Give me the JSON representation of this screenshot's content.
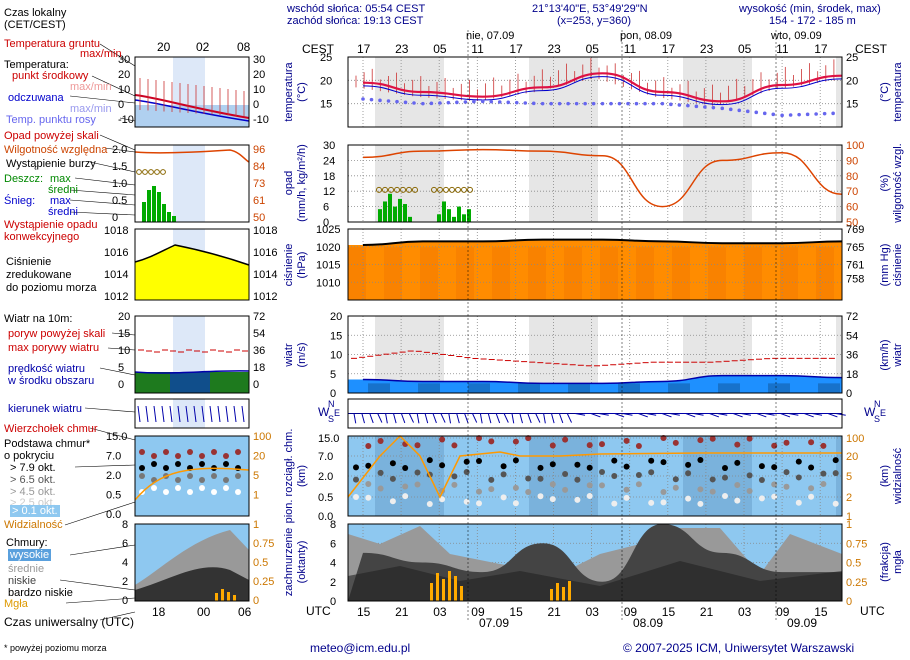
{
  "header": {
    "sunrise": "wschód słońca: 05:54 CEST",
    "sunset": "zachód słońca: 19:13 CEST",
    "coords": "21°13'40\"E, 53°49'29\"N",
    "grid": "(x=253,  y=360)",
    "height_title": "wysokość (min, środek, max)",
    "height_values": "154 - 172 - 185 m",
    "local_time_label": "Czas lokalny",
    "local_time_sub": "(CET/CEST)",
    "tz_left": "CEST",
    "tz_right": "CEST",
    "utc_left": "UTC",
    "utc_right": "UTC",
    "utc_caption": "Czas uniwersalny (UTC)"
  },
  "days": [
    {
      "label": "nie, 07.09",
      "utc_label": "07.09"
    },
    {
      "label": "pon, 08.09",
      "utc_label": "08.09"
    },
    {
      "label": "wto, 09.09",
      "utc_label": "09.09"
    }
  ],
  "local_ticks": [
    "17",
    "23",
    "05",
    "11",
    "17",
    "23",
    "05",
    "11",
    "17",
    "23",
    "05",
    "11",
    "17"
  ],
  "utc_ticks": [
    "15",
    "21",
    "03",
    "09",
    "15",
    "21",
    "03",
    "09",
    "15",
    "21",
    "03",
    "09",
    "15"
  ],
  "legend_ticks_top": [
    "20",
    "02",
    "08"
  ],
  "legend_ticks_bottom": [
    "18",
    "00",
    "06"
  ],
  "legend": {
    "temp_ground": "Temperatura gruntu",
    "temp_ground_sub": "max/min",
    "temp": "Temperatura:",
    "temp_mid": "punkt środkowy",
    "temp_minmax": "max/min",
    "temp_felt": "odczuwana",
    "temp_felt_minmax": "max/min",
    "dew": "Temp. punktu rosy",
    "precip_over": "Opad powyżej skali",
    "humidity": "Wilgotność względna",
    "storm": "Wystąpienie burzy",
    "rain": "Deszcz:",
    "rain_max": "max",
    "rain_mean": "średni",
    "snow": "Śnieg:",
    "snow_max": "max",
    "snow_mean": "średni",
    "convective": "Wystąpienie opadu",
    "convective2": "konwekcyjnego",
    "pressure1": "Ciśnienie",
    "pressure2": "zredukowane",
    "pressure3": "do poziomu morza",
    "wind10": "Wiatr na 10m:",
    "gust_over": "poryw powyżej skali",
    "gust_max": "max porywy wiatru",
    "wind_speed": "prędkość wiatru",
    "wind_speed2": "w środku obszaru",
    "wind_dir": "kierunek wiatru",
    "cloud_top": "Wierzchołek chmur",
    "cloud_base": "Podstawa chmur*",
    "cloud_base2": "o pokryciu",
    "okt79": "> 7.9 okt.",
    "okt65": "> 6.5 okt.",
    "okt45": "> 4.5 okt.",
    "okt25": "> 2.5 okt.",
    "okt01": "> 0.1 okt.",
    "visibility": "Widzialność",
    "clouds": "Chmury:",
    "cl_high": "wysokie",
    "cl_mid": "średnie",
    "cl_low": "niskie",
    "cl_vlow": "bardzo niskie",
    "fog": "Mgła",
    "footnote": "* powyżej poziomu morza"
  },
  "axes": {
    "temp_left": "temperatura",
    "temp_left_unit": "(°C)",
    "temp_right": "temperatura",
    "temp_right_unit": "(°C)",
    "precip_left": "opad",
    "precip_left_unit": "(mm/h, kg/m²/h)",
    "precip_right": "wilgotność wzgl.",
    "precip_right_unit": "(%)",
    "press_left": "ciśnienie",
    "press_left_unit": "(hPa)",
    "press_right": "ciśnienie",
    "press_right_unit": "(mm Hg)",
    "wind_left": "wiatr",
    "wind_left_unit": "(m/s)",
    "wind_right": "wiatr",
    "wind_right_unit": "(km/h)",
    "cloudbase_left": "pion. rozciągł. chm.",
    "cloudbase_left_unit": "(km)",
    "cloudbase_right": "widzialność",
    "cloudbase_right_unit": "(km)",
    "cover_left": "zachmurzenie",
    "cover_left_unit": "(oktanty)",
    "cover_right": "mgła",
    "cover_right_unit": "(frakcja)"
  },
  "footer": {
    "email": "meteo@icm.edu.pl",
    "copyright": "© 2007-2025 ICM, Uniwersytet Warszawski"
  },
  "colors": {
    "temp": "#cc0022",
    "felt": "#0000cc",
    "dew": "#6666ee",
    "humidity": "#cc4400",
    "rain": "#00aa00",
    "pressure": "#ff8c00",
    "wind": "#0066dd",
    "cloudsky": "#8ec8f0"
  },
  "chart_data": [
    {
      "type": "line",
      "name_hint": "temperature",
      "x": [
        "07.09 15",
        "07.09 21",
        "08.09 03",
        "08.09 09",
        "08.09 15",
        "08.09 21",
        "09.09 03",
        "09.09 09",
        "09.09 15"
      ],
      "series": [
        {
          "name": "punkt środkowy",
          "values": [
            19.5,
            17.5,
            16.5,
            18.5,
            21.5,
            17.5,
            15.5,
            19,
            21
          ]
        },
        {
          "name": "Temp. punktu rosy",
          "values": [
            16,
            15,
            15.5,
            15,
            15,
            15,
            14,
            12.5,
            13
          ]
        }
      ],
      "ylim": [
        10,
        25
      ],
      "yticks": [
        15,
        20,
        25
      ]
    },
    {
      "type": "line",
      "name_hint": "humidity",
      "x": [
        "07.09 15",
        "07.09 21",
        "08.09 03",
        "08.09 09",
        "08.09 15",
        "08.09 21",
        "09.09 03",
        "09.09 09",
        "09.09 15"
      ],
      "series": [
        {
          "name": "Wilgotność względna",
          "values": [
            92,
            96,
            97,
            96,
            93,
            60,
            90,
            95,
            68
          ]
        }
      ],
      "ylim": [
        50,
        100
      ],
      "yticks": [
        50,
        60,
        70,
        80,
        90,
        100
      ],
      "y2ticks": [
        0,
        6,
        12,
        18,
        24,
        30
      ]
    },
    {
      "type": "line",
      "name_hint": "pressure",
      "x": [
        "07.09 15",
        "07.09 21",
        "08.09 03",
        "08.09 09",
        "08.09 15",
        "08.09 21",
        "09.09 03",
        "09.09 09",
        "09.09 15"
      ],
      "series": [
        {
          "name": "Ciśnienie",
          "values": [
            1020.5,
            1021.5,
            1021.5,
            1022,
            1022,
            1021.5,
            1021,
            1021,
            1021.5
          ]
        }
      ],
      "ylim": [
        1005,
        1025
      ],
      "yticks": [
        1010,
        1015,
        1020,
        1025
      ],
      "y2ticks": [
        758,
        761,
        765,
        769
      ]
    },
    {
      "type": "area",
      "name_hint": "wind",
      "x": [
        "07.09 15",
        "07.09 21",
        "08.09 03",
        "08.09 09",
        "08.09 15",
        "08.09 21",
        "09.09 03",
        "09.09 09",
        "09.09 15"
      ],
      "series": [
        {
          "name": "prędkość wiatru",
          "values": [
            3.5,
            3,
            3,
            2.5,
            2.5,
            3,
            4.5,
            4.5,
            4
          ]
        },
        {
          "name": "max porywy wiatru",
          "values": [
            9,
            11,
            9,
            8,
            7,
            8,
            8,
            9,
            9
          ]
        }
      ],
      "ylim": [
        0,
        20
      ],
      "yticks": [
        0,
        5,
        10,
        15,
        20
      ],
      "y2ticks": [
        0,
        18,
        36,
        54,
        72
      ]
    },
    {
      "type": "line",
      "name_hint": "visibility",
      "x": [
        "07.09 15",
        "07.09 21",
        "08.09 03",
        "08.09 09",
        "08.09 15",
        "08.09 21",
        "09.09 03",
        "09.09 09",
        "09.09 15"
      ],
      "series": [
        {
          "name": "Widzialność",
          "values": [
            5,
            20,
            1,
            5,
            10,
            10,
            10,
            10,
            10
          ]
        }
      ],
      "yticks_left": [
        "0.0",
        "0.5",
        "2.0",
        "7.0",
        "15.0"
      ],
      "yticks_right": [
        "1",
        "2",
        "5",
        "20",
        "100"
      ]
    },
    {
      "type": "area",
      "name_hint": "cloud_cover",
      "x": [
        "07.09 15",
        "07.09 21",
        "08.09 03",
        "08.09 09",
        "08.09 15",
        "08.09 21",
        "09.09 03",
        "09.09 09",
        "09.09 15"
      ],
      "series": [
        {
          "name": "niskie",
          "values": [
            5,
            4,
            3,
            6,
            2,
            8,
            5,
            3,
            3
          ]
        }
      ],
      "ylim": [
        0,
        8
      ],
      "yticks": [
        0,
        2,
        4,
        6,
        8
      ],
      "y2ticks": [
        0,
        0.25,
        0.5,
        0.75,
        1
      ]
    }
  ]
}
